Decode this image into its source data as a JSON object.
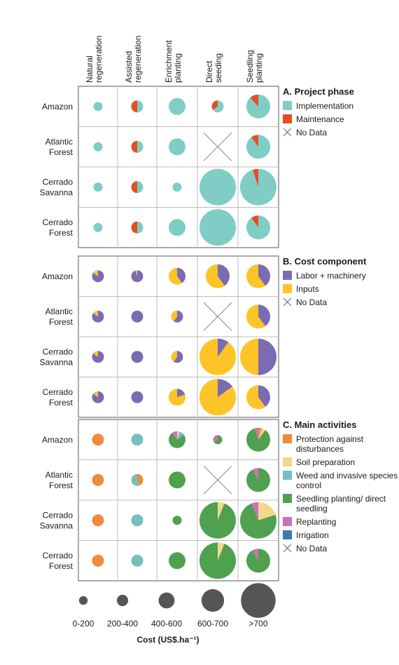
{
  "chart_data": {
    "type": "pie",
    "columns": [
      "Natural regeneration",
      "Assisted regeneration",
      "Enrichment planting",
      "Direct seeding",
      "Seedling planting"
    ],
    "rows": [
      "Amazon",
      "Atlantic Forest",
      "Cerrado Savanna",
      "Cerrado Forest"
    ],
    "cost_classes": [
      "0-200",
      "200-400",
      "400-600",
      "600-700",
      ">700"
    ],
    "x_axis_title": "Cost (US$.ha⁻¹)",
    "no_data_label": "No Data",
    "panels": [
      {
        "title": "A. Project phase",
        "categories": [
          {
            "name": "Implementation",
            "color": "#7fcdc4"
          },
          {
            "name": "Maintenance",
            "color": "#e3501f"
          }
        ],
        "cells": [
          [
            {
              "cost_class": 0,
              "values": [
                100,
                0
              ]
            },
            {
              "cost_class": 1,
              "values": [
                50,
                50
              ]
            },
            {
              "cost_class": 2,
              "values": [
                100,
                0
              ]
            },
            {
              "cost_class": 1,
              "values": [
                65,
                35
              ]
            },
            {
              "cost_class": 3,
              "values": [
                88,
                12
              ]
            }
          ],
          [
            {
              "cost_class": 0,
              "values": [
                100,
                0
              ]
            },
            {
              "cost_class": 1,
              "values": [
                50,
                50
              ]
            },
            {
              "cost_class": 2,
              "values": [
                100,
                0
              ]
            },
            null,
            {
              "cost_class": 3,
              "values": [
                90,
                10
              ]
            }
          ],
          [
            {
              "cost_class": 0,
              "values": [
                100,
                0
              ]
            },
            {
              "cost_class": 1,
              "values": [
                50,
                50
              ]
            },
            {
              "cost_class": 0,
              "values": [
                100,
                0
              ]
            },
            {
              "cost_class": 4,
              "values": [
                100,
                0
              ]
            },
            {
              "cost_class": 4,
              "values": [
                95,
                5
              ]
            }
          ],
          [
            {
              "cost_class": 0,
              "values": [
                100,
                0
              ]
            },
            {
              "cost_class": 1,
              "values": [
                50,
                50
              ]
            },
            {
              "cost_class": 2,
              "values": [
                100,
                0
              ]
            },
            {
              "cost_class": 4,
              "values": [
                100,
                0
              ]
            },
            {
              "cost_class": 3,
              "values": [
                90,
                10
              ]
            }
          ]
        ]
      },
      {
        "title": "B. Cost component",
        "categories": [
          {
            "name": "Labor + machinery",
            "color": "#7b6bb3"
          },
          {
            "name": "Inputs",
            "color": "#fcc427"
          }
        ],
        "cells": [
          [
            {
              "cost_class": 1,
              "values": [
                85,
                15
              ]
            },
            {
              "cost_class": 1,
              "values": [
                95,
                5
              ]
            },
            {
              "cost_class": 2,
              "values": [
                40,
                60
              ]
            },
            {
              "cost_class": 3,
              "values": [
                40,
                60
              ]
            },
            {
              "cost_class": 3,
              "values": [
                40,
                60
              ]
            }
          ],
          [
            {
              "cost_class": 1,
              "values": [
                85,
                15
              ]
            },
            {
              "cost_class": 1,
              "values": [
                100,
                0
              ]
            },
            {
              "cost_class": 1,
              "values": [
                60,
                40
              ]
            },
            null,
            {
              "cost_class": 3,
              "values": [
                40,
                60
              ]
            }
          ],
          [
            {
              "cost_class": 1,
              "values": [
                85,
                15
              ]
            },
            {
              "cost_class": 1,
              "values": [
                100,
                0
              ]
            },
            {
              "cost_class": 1,
              "values": [
                60,
                40
              ]
            },
            {
              "cost_class": 4,
              "values": [
                10,
                90
              ]
            },
            {
              "cost_class": 4,
              "values": [
                50,
                50
              ]
            }
          ],
          [
            {
              "cost_class": 1,
              "values": [
                85,
                15
              ]
            },
            {
              "cost_class": 1,
              "values": [
                100,
                0
              ]
            },
            {
              "cost_class": 2,
              "values": [
                20,
                80
              ]
            },
            {
              "cost_class": 4,
              "values": [
                15,
                85
              ]
            },
            {
              "cost_class": 3,
              "values": [
                40,
                60
              ]
            }
          ]
        ]
      },
      {
        "title": "C. Main activities",
        "categories": [
          {
            "name": "Protection against disturbances",
            "color": "#f08a3c"
          },
          {
            "name": "Soil preparation",
            "color": "#f2d88d"
          },
          {
            "name": "Weed and invasive species control",
            "color": "#74bfc0"
          },
          {
            "name": "Seedling planting/ direct seedling",
            "color": "#4fa04f"
          },
          {
            "name": "Replanting",
            "color": "#c873b8"
          },
          {
            "name": "Irrigation",
            "color": "#3b7ab6"
          }
        ],
        "cells": [
          [
            {
              "cost_class": 1,
              "values": [
                100,
                0,
                0,
                0,
                0,
                0
              ]
            },
            {
              "cost_class": 1,
              "values": [
                0,
                0,
                100,
                0,
                0,
                0
              ]
            },
            {
              "cost_class": 2,
              "values": [
                0,
                5,
                10,
                75,
                10,
                0
              ]
            },
            {
              "cost_class": 0,
              "values": [
                0,
                0,
                0,
                65,
                35,
                0
              ]
            },
            {
              "cost_class": 3,
              "values": [
                5,
                5,
                0,
                85,
                5,
                0
              ]
            }
          ],
          [
            {
              "cost_class": 1,
              "values": [
                100,
                0,
                0,
                0,
                0,
                0
              ]
            },
            {
              "cost_class": 1,
              "values": [
                45,
                0,
                55,
                0,
                0,
                0
              ]
            },
            {
              "cost_class": 2,
              "values": [
                0,
                0,
                0,
                100,
                0,
                0
              ]
            },
            null,
            {
              "cost_class": 3,
              "values": [
                0,
                0,
                0,
                92,
                8,
                0
              ]
            }
          ],
          [
            {
              "cost_class": 1,
              "values": [
                100,
                0,
                0,
                0,
                0,
                0
              ]
            },
            {
              "cost_class": 1,
              "values": [
                0,
                0,
                100,
                0,
                0,
                0
              ]
            },
            {
              "cost_class": 0,
              "values": [
                0,
                0,
                0,
                100,
                0,
                0
              ]
            },
            {
              "cost_class": 4,
              "values": [
                0,
                6,
                0,
                94,
                0,
                0
              ]
            },
            {
              "cost_class": 4,
              "values": [
                0,
                20,
                0,
                74,
                6,
                0
              ]
            }
          ],
          [
            {
              "cost_class": 1,
              "values": [
                100,
                0,
                0,
                0,
                0,
                0
              ]
            },
            {
              "cost_class": 1,
              "values": [
                0,
                0,
                100,
                0,
                0,
                0
              ]
            },
            {
              "cost_class": 2,
              "values": [
                0,
                0,
                0,
                100,
                0,
                0
              ]
            },
            {
              "cost_class": 4,
              "values": [
                0,
                6,
                0,
                94,
                0,
                0
              ]
            },
            {
              "cost_class": 3,
              "values": [
                0,
                0,
                0,
                92,
                8,
                0
              ]
            }
          ]
        ]
      }
    ]
  }
}
